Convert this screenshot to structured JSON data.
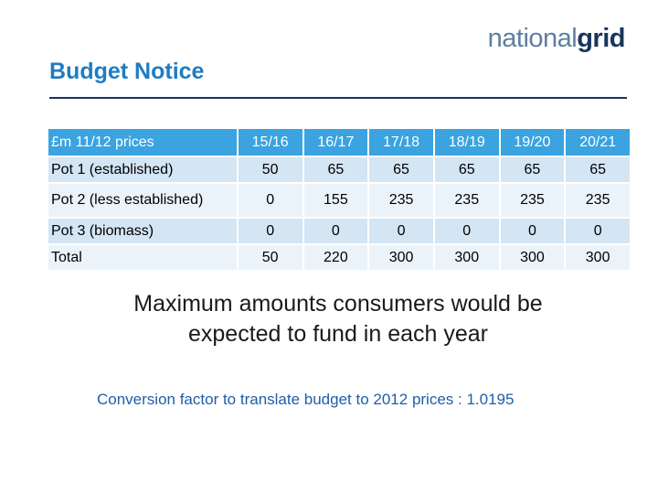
{
  "header": {
    "logo_part1": "national",
    "logo_part2": "grid",
    "title": "Budget Notice"
  },
  "table": {
    "columns": [
      "£m 11/12 prices",
      "15/16",
      "16/17",
      "17/18",
      "18/19",
      "19/20",
      "20/21"
    ],
    "rows": [
      {
        "label": "Pot 1 (established)",
        "values": [
          "50",
          "65",
          "65",
          "65",
          "65",
          "65"
        ]
      },
      {
        "label": "Pot 2 (less established)",
        "values": [
          "0",
          "155",
          "235",
          "235",
          "235",
          "235"
        ]
      },
      {
        "label": "Pot 3 (biomass)",
        "values": [
          "0",
          "0",
          "0",
          "0",
          "0",
          "0"
        ]
      },
      {
        "label": "Total",
        "values": [
          "50",
          "220",
          "300",
          "300",
          "300",
          "300"
        ]
      }
    ]
  },
  "caption": {
    "line1": "Maximum amounts consumers would be",
    "line2": "expected to fund in each year"
  },
  "footer": {
    "conversion": "Conversion factor to translate budget to 2012 prices : 1.0195"
  },
  "colors": {
    "header_blue": "#3aa3e0",
    "title_blue": "#1f7cc2",
    "row_dark": "#d4e5f4",
    "row_light": "#ebf3fa"
  }
}
